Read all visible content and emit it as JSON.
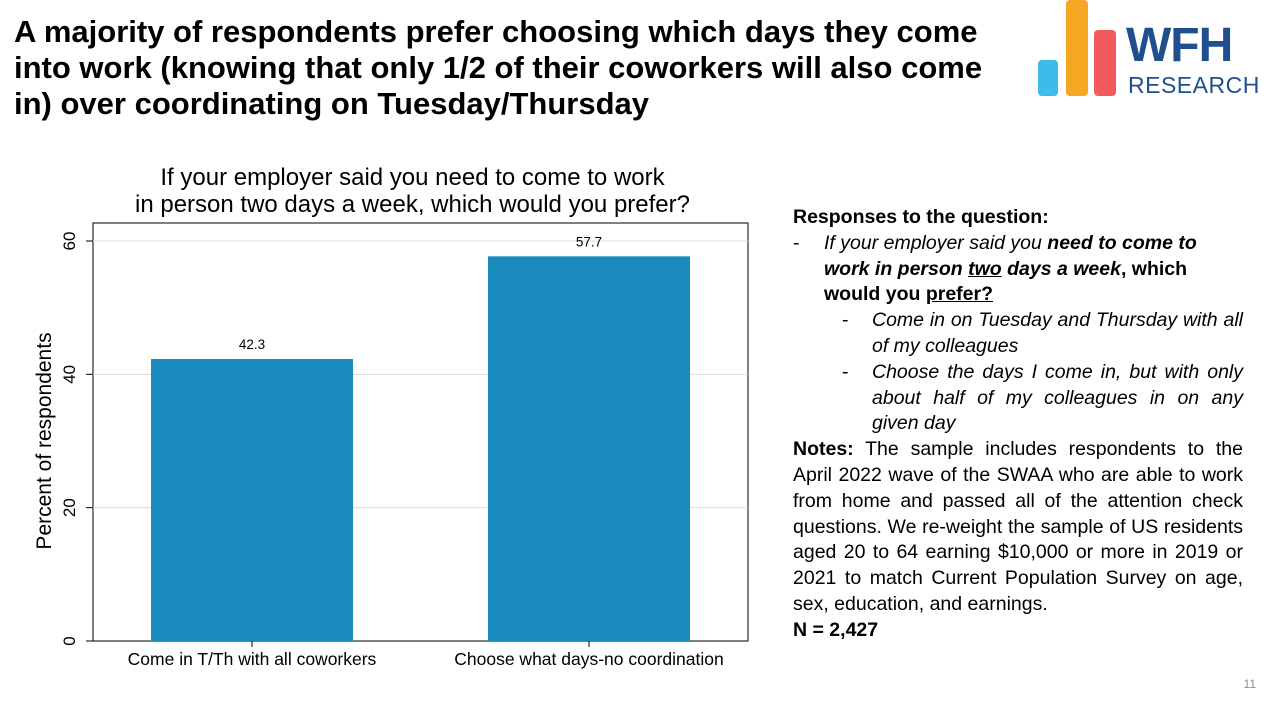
{
  "headline": "A majority of respondents prefer choosing which days they come into work (knowing that only 1/2 of their coworkers will also come in) over coordinating on Tuesday/Thursday",
  "logo": {
    "wfh": "WFH",
    "research": "RESEARCH",
    "colors": {
      "blue": "#3bbce9",
      "orange": "#f5a623",
      "red": "#f25a5e",
      "navy": "#1f4f8e"
    }
  },
  "chart_data": {
    "type": "bar",
    "title_lines": [
      "If your employer said you need to come to work",
      "in person two days a week, which would you prefer?"
    ],
    "categories": [
      "Come in T/Th with all coworkers",
      "Choose what days-no coordination"
    ],
    "values": [
      42.3,
      57.7
    ],
    "value_labels": [
      "42.3",
      "57.7"
    ],
    "xlabel": "",
    "ylabel": "Percent of respondents",
    "ylim": [
      0,
      60
    ],
    "yticks": [
      0,
      20,
      40,
      60
    ],
    "grid": true,
    "bar_color": "#1a8bbd"
  },
  "side": {
    "heading": "Responses to the question:",
    "dash": "-",
    "q_intro": "If your employer said you ",
    "q_b1": "need to come to work in person ",
    "q_u1": "two",
    "q_b2": " days a week",
    "q_comma": ", which would you ",
    "q_u2": "prefer?",
    "options": [
      "Come in on Tuesday and Thursday with all of my colleagues",
      "Choose the days I come in, but with only about half of my colleagues in on any given day"
    ],
    "notes_label": "Notes:",
    "notes_text": " The sample includes respondents to the April 2022 wave of the SWAA who are able to work from home and passed all of the attention check questions. We re-weight the sample of US residents aged 20 to 64 earning $10,000 or more in 2019 or 2021 to match Current Population Survey on age, sex, education, and earnings.",
    "n_line": "N = 2,427"
  },
  "page_number": "11"
}
